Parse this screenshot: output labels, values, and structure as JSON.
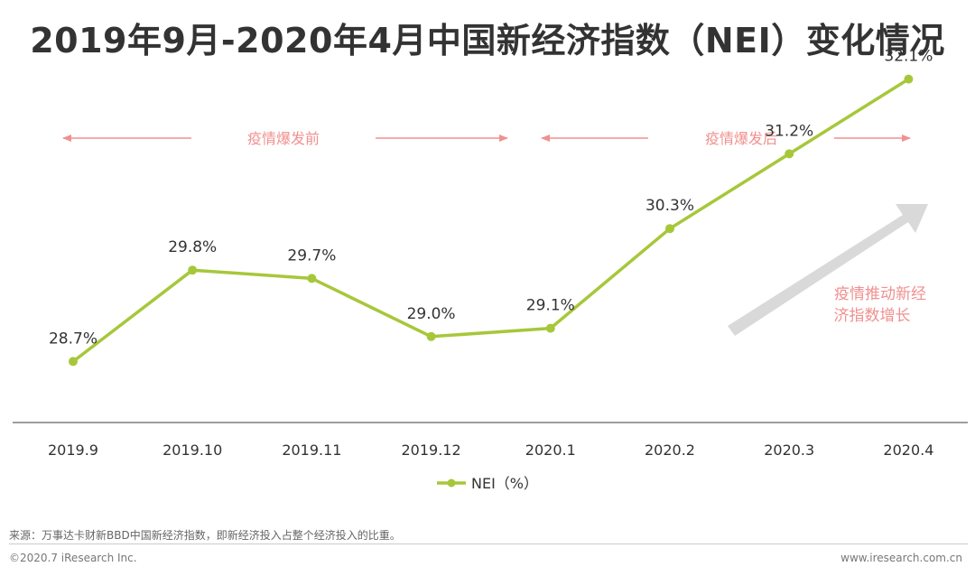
{
  "colors": {
    "line": "#a7c73a",
    "annotation": "#f0908f",
    "axis": "#7f7f7f",
    "text": "#333333",
    "arrow": "#d9d9d9"
  },
  "chart_data": {
    "type": "line",
    "title": "2019年9月-2020年4月中国新经济指数（NEI）变化情况",
    "categories": [
      "2019.9",
      "2019.10",
      "2019.11",
      "2019.12",
      "2020.1",
      "2020.2",
      "2020.3",
      "2020.4"
    ],
    "series": [
      {
        "name": "NEI（%）",
        "values": [
          28.7,
          29.8,
          29.7,
          29.0,
          29.1,
          30.3,
          31.2,
          32.1
        ],
        "labels": [
          "28.7%",
          "29.8%",
          "29.7%",
          "29.0%",
          "29.1%",
          "30.3%",
          "31.2%",
          "32.1%"
        ]
      }
    ],
    "xlabel": "",
    "ylabel": "",
    "ylim": [
      27.4,
      32.4
    ],
    "grid": false,
    "legend": "bottom-center",
    "annotations": {
      "before": "疫情爆发前",
      "after": "疫情爆发后",
      "trend_line1": "疫情推动新经",
      "trend_line2": "济指数增长"
    }
  },
  "footer": {
    "source": "来源：万事达卡财新BBD中国新经济指数，即新经济投入占整个经济投入的比重。",
    "copyright": "©2020.7 iResearch Inc.",
    "website": "www.iresearch.com.cn"
  }
}
